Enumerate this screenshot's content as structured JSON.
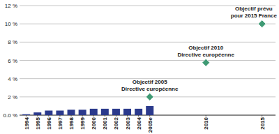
{
  "chart_data": {
    "type": "bar",
    "xlim": [
      1993.4,
      2016.2
    ],
    "xticks": [
      1994,
      1995,
      1996,
      1997,
      1998,
      1999,
      2000,
      2001,
      2002,
      2003,
      2004,
      {
        "value": 2005,
        "label": "2005e"
      },
      2010,
      2015
    ],
    "ylim": [
      0,
      12
    ],
    "yticks": [
      {
        "value": 0,
        "label": "0.0 %"
      },
      {
        "value": 2,
        "label": "2 %"
      },
      {
        "value": 4,
        "label": "4 %"
      },
      {
        "value": 6,
        "label": "6 %"
      },
      {
        "value": 8,
        "label": "8 %"
      },
      {
        "value": 10,
        "label": "10 %"
      },
      {
        "value": 12,
        "label": "12 %"
      }
    ],
    "grid": true,
    "series": [
      {
        "type": "bar",
        "color": "#2b3a8c",
        "x": [
          1994,
          1995,
          1996,
          1997,
          1998,
          1999,
          2000,
          2001,
          2002,
          2003,
          2004,
          2005
        ],
        "values": [
          0.1,
          0.3,
          0.5,
          0.5,
          0.6,
          0.6,
          0.7,
          0.7,
          0.7,
          0.7,
          0.7,
          1.0
        ]
      },
      {
        "type": "scatter",
        "marker": "diamond",
        "color": "#3f9a74",
        "x": [
          2005,
          2010,
          2015
        ],
        "values": [
          2,
          5.75,
          10
        ],
        "labels": [
          [
            "Objectif 2005",
            "Directive européenne"
          ],
          [
            "Objectif 2010",
            "Directive européenne"
          ],
          [
            "Objectif prévu",
            "pour 2015 France"
          ]
        ]
      }
    ]
  }
}
